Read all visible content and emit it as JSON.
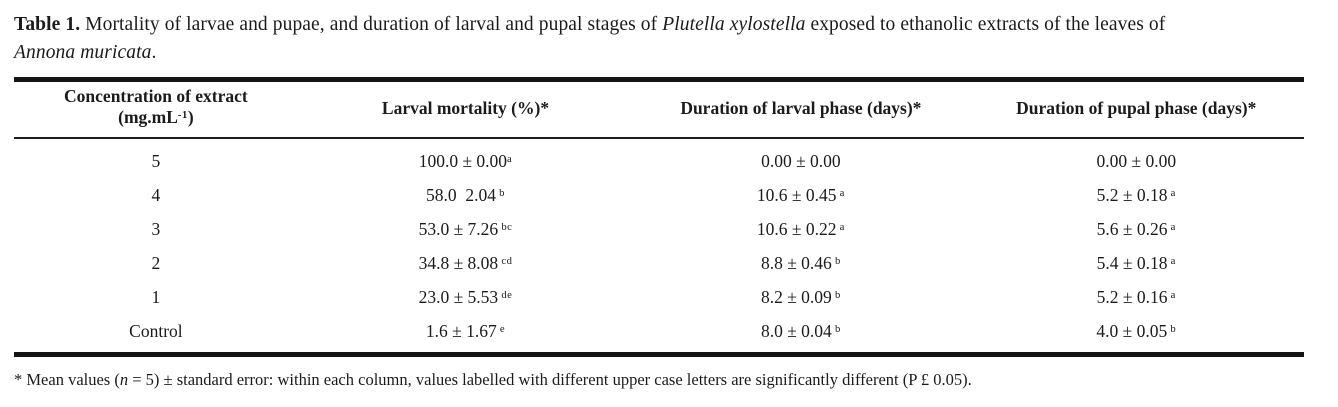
{
  "caption": {
    "label": "Table 1.",
    "text_1": " Mortality of larvae and pupae, and duration of larval and pupal stages of ",
    "species_1": "Plutella xylostella",
    "text_2": " exposed to ethanolic extracts of the leaves of ",
    "species_2": "Annona muricata",
    "text_3": "."
  },
  "table": {
    "headers": {
      "col1_line1": "Concentration of extract",
      "col1_line2_pre": "(mg.mL",
      "col1_line2_sup": "-1",
      "col1_line2_post": ")",
      "col2": "Larval mortality (%)*",
      "col3": "Duration of larval phase (days)*",
      "col4": "Duration of pupal phase (days)*"
    },
    "rows": [
      {
        "label": "5",
        "cells": [
          {
            "value": "100.0 ± 0.00",
            "sup": "a"
          },
          {
            "value": "0.00 ± 0.00",
            "sup": ""
          },
          {
            "value": "0.00 ± 0.00",
            "sup": ""
          }
        ]
      },
      {
        "label": "4",
        "cells": [
          {
            "value": "58.0  2.04",
            "sup": " b"
          },
          {
            "value": "10.6 ± 0.45",
            "sup": " a"
          },
          {
            "value": "5.2 ± 0.18",
            "sup": " a"
          }
        ]
      },
      {
        "label": "3",
        "cells": [
          {
            "value": "53.0 ± 7.26",
            "sup": " bc"
          },
          {
            "value": "10.6 ± 0.22",
            "sup": " a"
          },
          {
            "value": "5.6 ± 0.26",
            "sup": " a"
          }
        ]
      },
      {
        "label": "2",
        "cells": [
          {
            "value": "34.8 ± 8.08",
            "sup": " cd"
          },
          {
            "value": "8.8 ± 0.46",
            "sup": " b"
          },
          {
            "value": "5.4 ± 0.18",
            "sup": " a"
          }
        ]
      },
      {
        "label": "1",
        "cells": [
          {
            "value": "23.0 ± 5.53",
            "sup": " de"
          },
          {
            "value": "8.2 ± 0.09",
            "sup": " b"
          },
          {
            "value": "5.2 ± 0.16",
            "sup": " a"
          }
        ]
      },
      {
        "label": "Control",
        "cells": [
          {
            "value": "1.6 ± 1.67",
            "sup": " e"
          },
          {
            "value": "8.0 ± 0.04",
            "sup": " b"
          },
          {
            "value": "4.0 ± 0.05",
            "sup": " b"
          }
        ]
      }
    ]
  },
  "footnote": {
    "text_1": "* Mean values (",
    "italic_1": "n",
    "text_2": " = 5) ± standard error: within each column, values labelled with different upper case letters are significantly different (P £ 0.05)."
  }
}
